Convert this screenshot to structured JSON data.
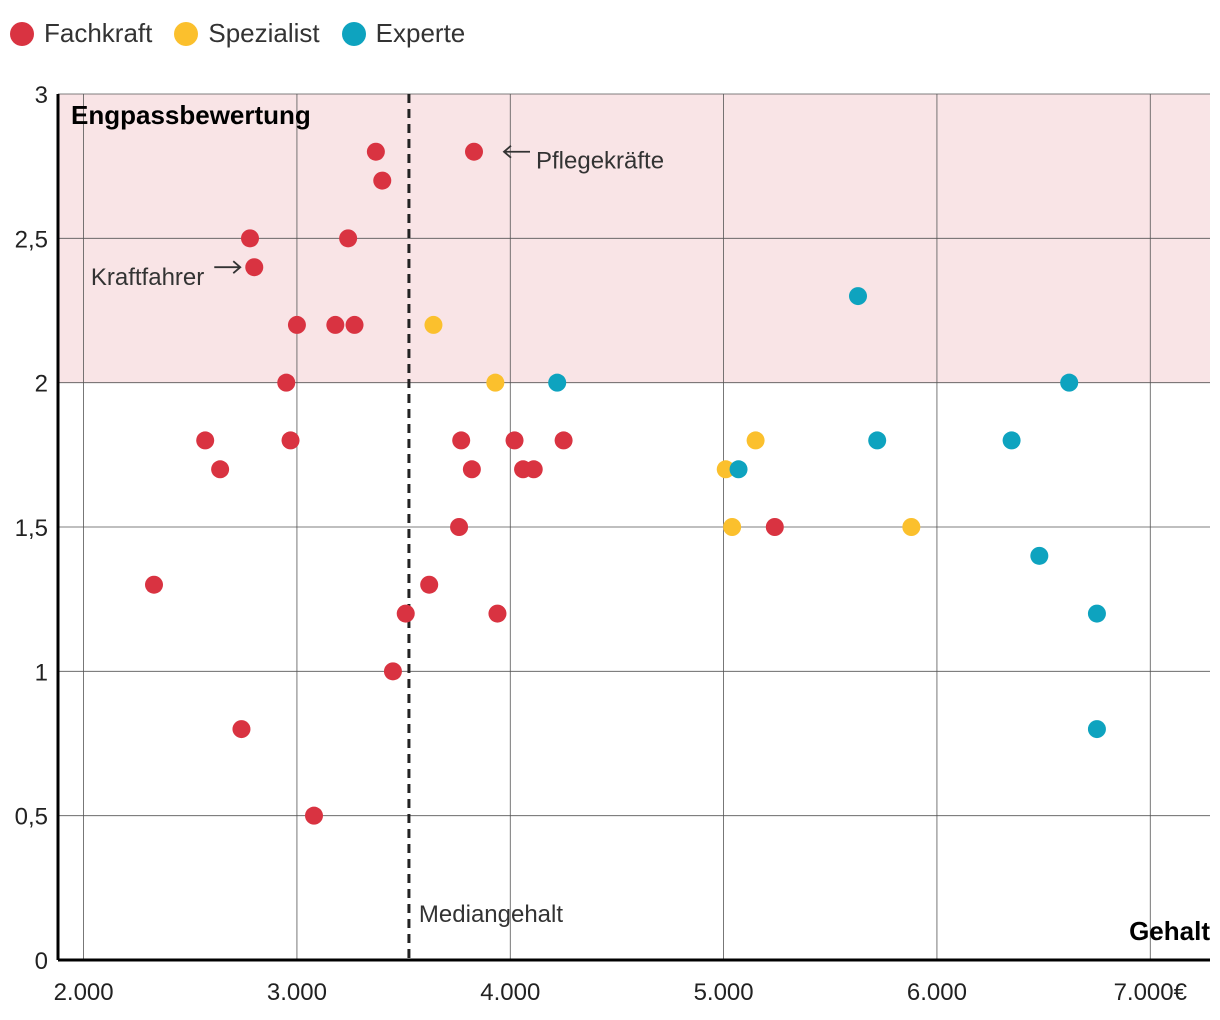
{
  "chart_data": {
    "type": "scatter",
    "title": "",
    "xlabel": "Gehalt",
    "ylabel": "Engpassbewertung",
    "xlim": [
      1880,
      7280
    ],
    "ylim": [
      0,
      3
    ],
    "x_ticks": [
      2000,
      3000,
      4000,
      5000,
      6000,
      7000
    ],
    "x_tick_labels": [
      "2.000",
      "3.000",
      "4.000",
      "5.000",
      "6.000",
      "7.000€"
    ],
    "y_ticks": [
      0,
      0.5,
      1,
      1.5,
      2,
      2.5,
      3
    ],
    "y_tick_labels": [
      "0",
      "0,5",
      "1",
      "1,5",
      "2",
      "2,5",
      "3"
    ],
    "grid": true,
    "legend_position": "top-left",
    "shaded_region": {
      "y_from": 2,
      "y_to": 3,
      "color": "#f9e4e6"
    },
    "median_line": {
      "x": 3525,
      "label": "Mediangehalt"
    },
    "annotations": [
      {
        "text": "Pflegekräfte",
        "x": 3830,
        "y": 2.8,
        "side": "right"
      },
      {
        "text": "Kraftfahrer",
        "x": 2800,
        "y": 2.4,
        "side": "left"
      }
    ],
    "series": [
      {
        "name": "Fachkraft",
        "color": "#d93341",
        "points": [
          [
            2330,
            1.3
          ],
          [
            2570,
            1.8
          ],
          [
            2640,
            1.7
          ],
          [
            2740,
            0.8
          ],
          [
            2780,
            2.5
          ],
          [
            2800,
            2.4
          ],
          [
            2950,
            2.0
          ],
          [
            2970,
            1.8
          ],
          [
            3000,
            2.2
          ],
          [
            3080,
            0.5
          ],
          [
            3180,
            2.2
          ],
          [
            3240,
            2.5
          ],
          [
            3270,
            2.2
          ],
          [
            3370,
            2.8
          ],
          [
            3400,
            2.7
          ],
          [
            3450,
            1.0
          ],
          [
            3510,
            1.2
          ],
          [
            3620,
            1.3
          ],
          [
            3760,
            1.5
          ],
          [
            3770,
            1.8
          ],
          [
            3820,
            1.7
          ],
          [
            3830,
            2.8
          ],
          [
            3940,
            1.2
          ],
          [
            4020,
            1.8
          ],
          [
            4060,
            1.7
          ],
          [
            4110,
            1.7
          ],
          [
            4250,
            1.8
          ],
          [
            5240,
            1.5
          ]
        ]
      },
      {
        "name": "Spezialist",
        "color": "#fbc02d",
        "points": [
          [
            3640,
            2.2
          ],
          [
            3930,
            2.0
          ],
          [
            5010,
            1.7
          ],
          [
            5040,
            1.5
          ],
          [
            5150,
            1.8
          ],
          [
            5880,
            1.5
          ]
        ]
      },
      {
        "name": "Experte",
        "color": "#0ea3bf",
        "points": [
          [
            4220,
            2.0
          ],
          [
            5070,
            1.7
          ],
          [
            5630,
            2.3
          ],
          [
            5720,
            1.8
          ],
          [
            6350,
            1.8
          ],
          [
            6480,
            1.4
          ],
          [
            6620,
            2.0
          ],
          [
            6750,
            1.2
          ],
          [
            6750,
            0.8
          ]
        ]
      }
    ]
  }
}
